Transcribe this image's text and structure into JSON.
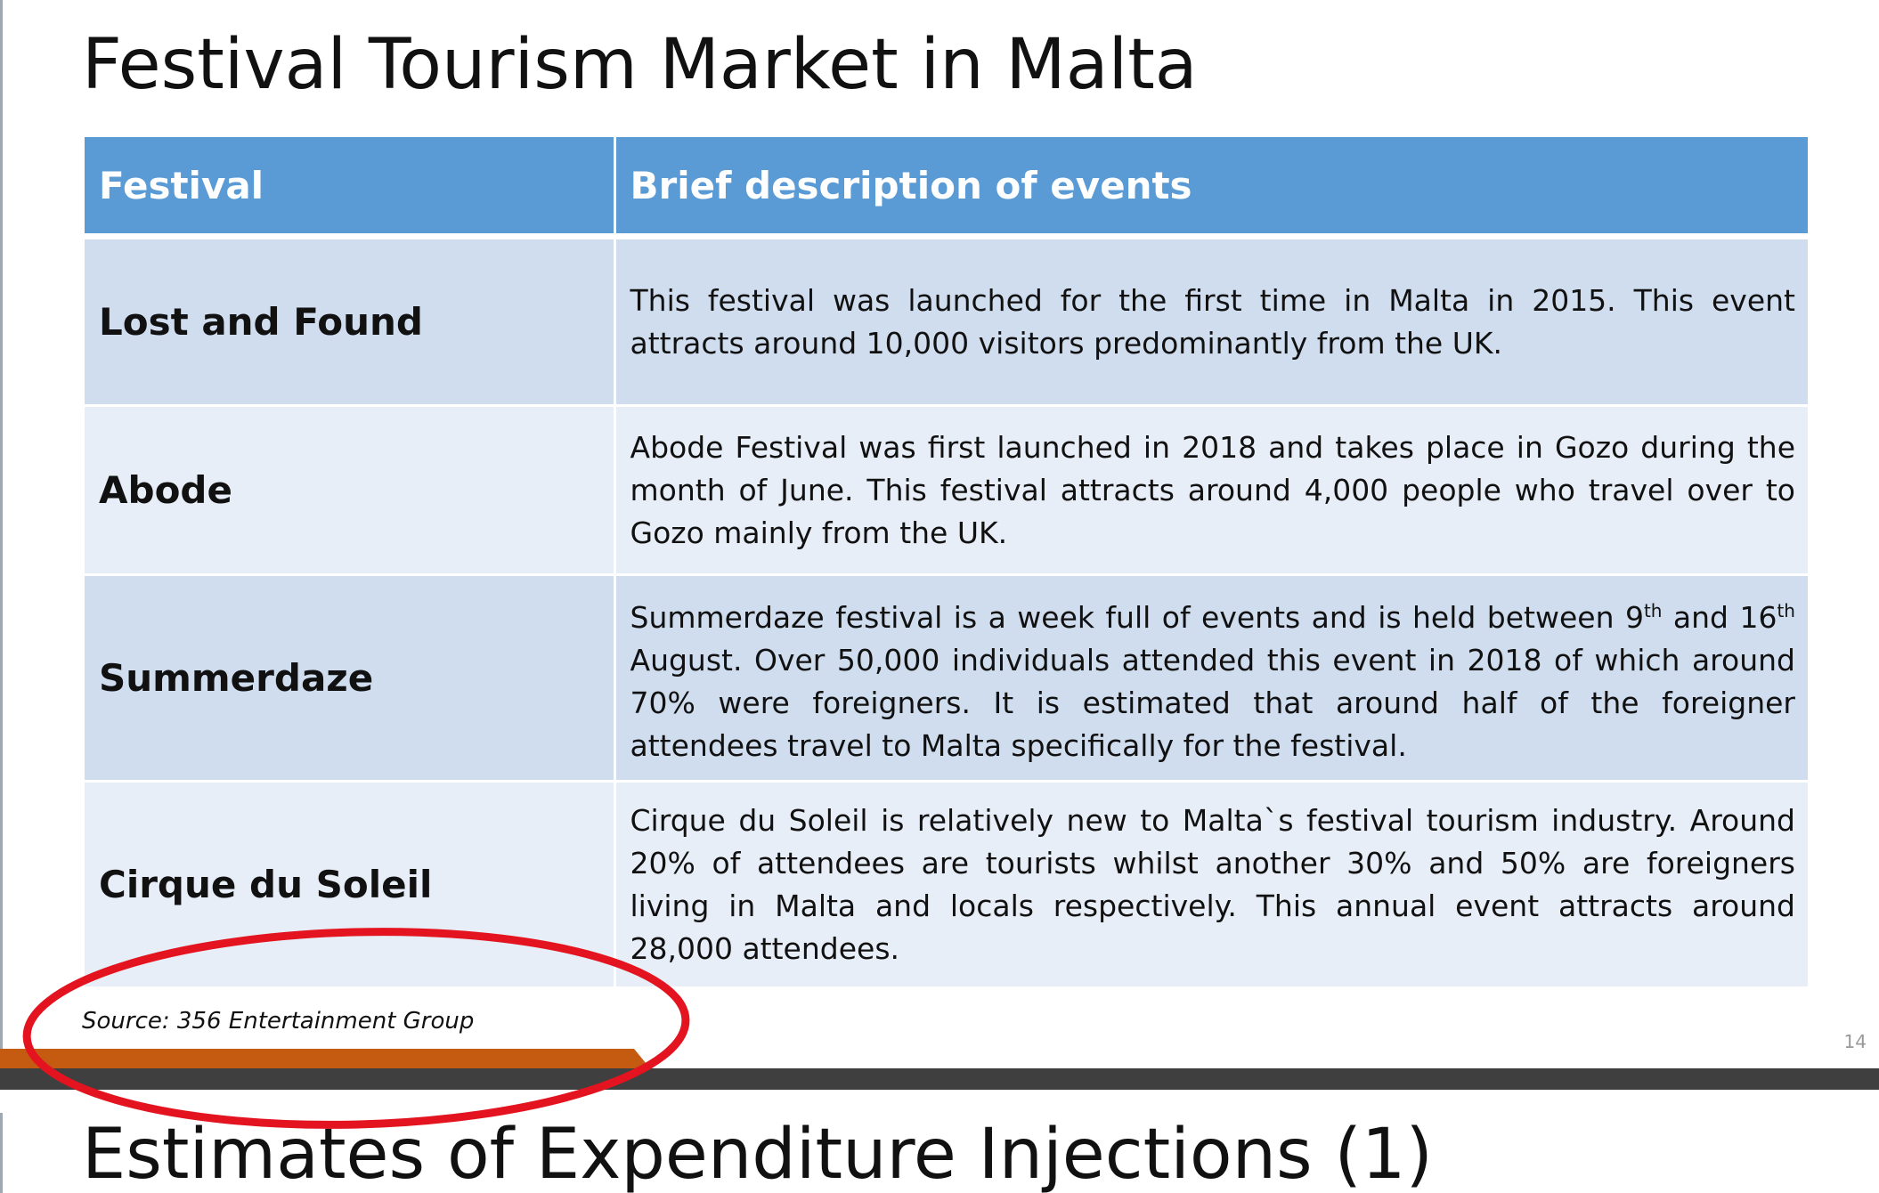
{
  "slide": {
    "title": "Festival Tourism Market in Malta",
    "page_number": "14",
    "source": "Source: 356 Entertainment Group"
  },
  "table": {
    "headers": [
      "Festival",
      "Brief description of events"
    ],
    "rows": [
      {
        "festival": "Lost and Found",
        "description": "This festival was launched for the first time in Malta in 2015. This event attracts around 10,000 visitors predominantly from the UK."
      },
      {
        "festival": "Abode",
        "description": "Abode Festival was first launched in 2018 and takes place in Gozo during the month of June. This festival attracts around 4,000 people who travel over to Gozo mainly from the UK."
      },
      {
        "festival": "Summerdaze",
        "description_parts": [
          "Summerdaze festival is a week full of events and is held between 9",
          "th",
          " and 16",
          "th",
          " August. Over 50,000 individuals attended this event in 2018 of which around 70% were foreigners. It is estimated that around half of the foreigner attendees travel to Malta specifically  for the festival."
        ]
      },
      {
        "festival": "Cirque du Soleil",
        "description": "Cirque du Soleil is relatively new to Malta`s festival tourism industry. Around 20% of attendees are tourists whilst another 30% and 50% are foreigners living in Malta and locals respectively. This annual event attracts around 28,000 attendees."
      }
    ]
  },
  "next_slide": {
    "title": "Estimates of Expenditure Injections (1)"
  },
  "colors": {
    "header_blue": "#5b9bd5",
    "row_dark": "#cfddef",
    "row_light": "#e8eef7",
    "accent_orange": "#c55a11",
    "separator": "#3f3f3f",
    "highlight_red": "#e3141f"
  }
}
